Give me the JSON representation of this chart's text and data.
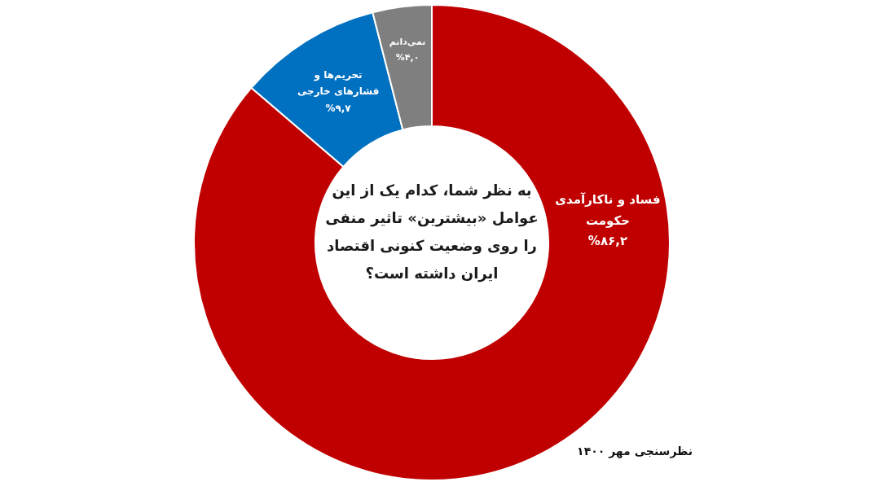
{
  "chart_data": {
    "type": "donut",
    "title": "به نظر شما، کدام یک از این عوامل «بیشترین» تاثیر منفی را روی وضعیت کنونی اقتصاد ایران داشته است؟",
    "categories": [
      "فساد و ناکارآمدی حکومت",
      "تحریم‌ها و فشارهای خارجی",
      "نمی‌دانم"
    ],
    "values": [
      86.2,
      9.7,
      4.0
    ],
    "colors": [
      "#c00000",
      "#0070c0",
      "#7f7f7f"
    ],
    "value_labels": [
      "%۸۶,۲",
      "%۹,۷",
      "%۴,۰"
    ],
    "annotations": [
      "نظرسنجی مهر ۱۴۰۰"
    ]
  }
}
